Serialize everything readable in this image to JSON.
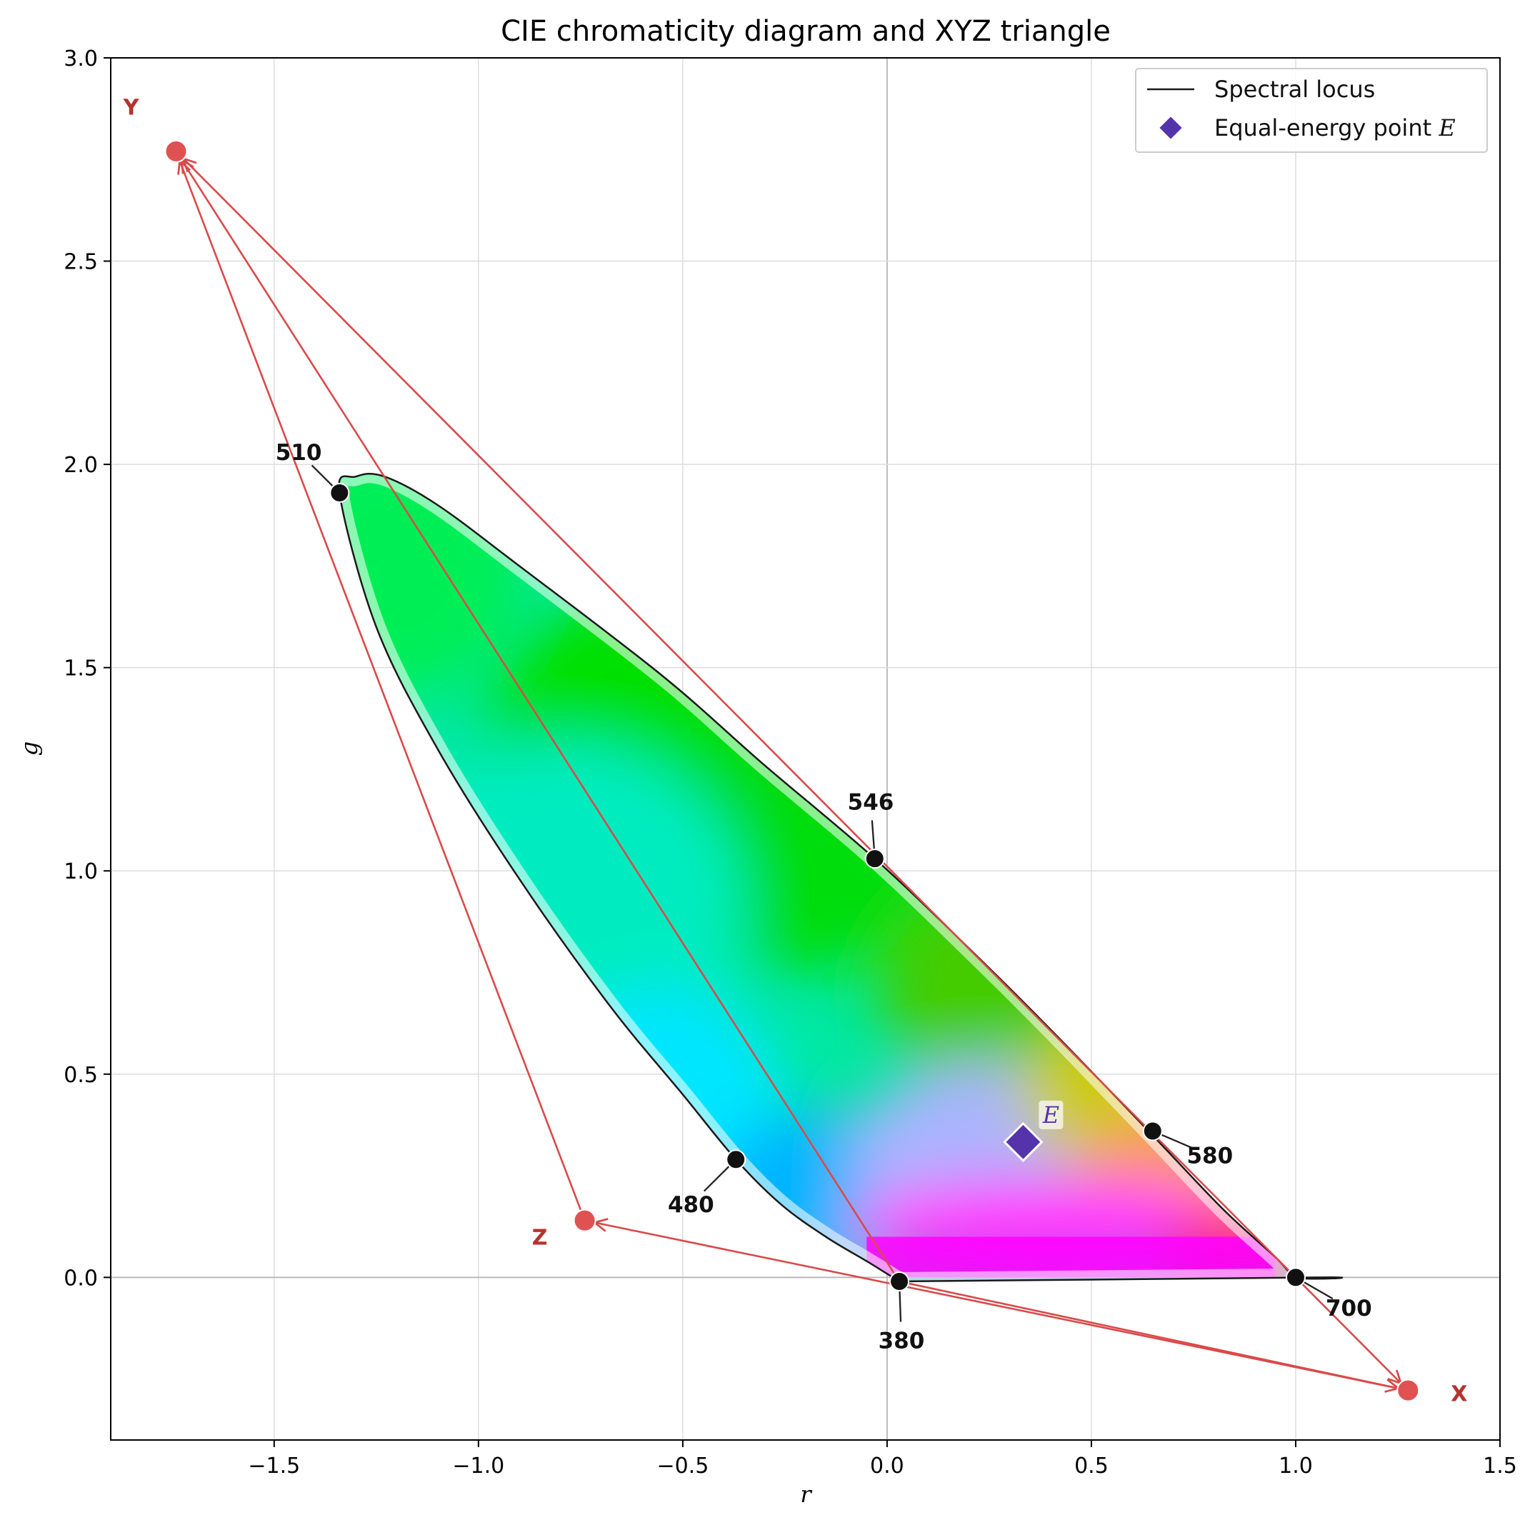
{
  "colors": {
    "triangle": "#d94a4a",
    "vertex_label": "#b5332e",
    "locus": "#1a1a1a",
    "equal_energy": "#5533aa",
    "grid": "#dddddd",
    "zero_axis": "#bbbbbb"
  },
  "chart_data": {
    "type": "scatter",
    "title": "CIE chromaticity diagram and XYZ triangle",
    "xlabel": "r",
    "ylabel": "g",
    "xlim": [
      -1.9,
      1.5
    ],
    "ylim": [
      -0.4,
      3.0
    ],
    "xticks": [
      -1.5,
      -1.0,
      -0.5,
      0.0,
      0.5,
      1.0,
      1.5
    ],
    "xtick_labels": [
      "−1.5",
      "−1.0",
      "−0.5",
      "0.0",
      "0.5",
      "1.0",
      "1.5"
    ],
    "yticks": [
      0.0,
      0.5,
      1.0,
      1.5,
      2.0,
      2.5,
      3.0
    ],
    "ytick_labels": [
      "0.0",
      "0.5",
      "1.0",
      "1.5",
      "2.0",
      "2.5",
      "3.0"
    ],
    "grid": true,
    "legend_position": "top-right",
    "legend": [
      {
        "label": "Spectral locus",
        "marker": "line"
      },
      {
        "label": "Equal-energy point",
        "label_italic": "E",
        "marker": "diamond"
      }
    ],
    "spectral_locus": {
      "name": "Spectral locus",
      "points": [
        [
          0.03,
          -0.01
        ],
        [
          -0.05,
          0.04
        ],
        [
          -0.15,
          0.1
        ],
        [
          -0.26,
          0.18
        ],
        [
          -0.37,
          0.29
        ],
        [
          -0.5,
          0.45
        ],
        [
          -0.68,
          0.67
        ],
        [
          -0.9,
          0.98
        ],
        [
          -1.1,
          1.3
        ],
        [
          -1.25,
          1.6
        ],
        [
          -1.34,
          1.93
        ],
        [
          -1.3,
          1.97
        ],
        [
          -1.23,
          1.97
        ],
        [
          -1.1,
          1.9
        ],
        [
          -0.9,
          1.75
        ],
        [
          -0.55,
          1.48
        ],
        [
          -0.3,
          1.26
        ],
        [
          -0.03,
          1.03
        ],
        [
          0.2,
          0.81
        ],
        [
          0.4,
          0.61
        ],
        [
          0.64,
          0.36
        ],
        [
          0.82,
          0.17
        ],
        [
          0.95,
          0.05
        ],
        [
          1.0,
          0.0
        ],
        [
          1.05,
          0.0
        ],
        [
          0.03,
          -0.01
        ]
      ]
    },
    "wavelength_markers": [
      {
        "label": "510",
        "r": -1.34,
        "g": 1.93,
        "label_r": -1.44,
        "label_g": 2.03
      },
      {
        "label": "546",
        "r": -0.03,
        "g": 1.03,
        "label_r": -0.04,
        "label_g": 1.17
      },
      {
        "label": "480",
        "r": -0.37,
        "g": 0.29,
        "label_r": -0.48,
        "label_g": 0.18
      },
      {
        "label": "580",
        "r": 0.65,
        "g": 0.36,
        "label_r": 0.79,
        "label_g": 0.3
      },
      {
        "label": "700",
        "r": 1.0,
        "g": 0.0,
        "label_r": 1.13,
        "label_g": -0.075
      },
      {
        "label": "380",
        "r": 0.03,
        "g": -0.01,
        "label_r": 0.035,
        "label_g": -0.155
      }
    ],
    "xyz_primaries": [
      {
        "label": "X",
        "r": 1.275,
        "g": -0.278,
        "label_r": 1.4,
        "label_g": -0.285
      },
      {
        "label": "Y",
        "r": -1.74,
        "g": 2.77,
        "label_r": -1.85,
        "label_g": 2.88
      },
      {
        "label": "Z",
        "r": -0.74,
        "g": 0.14,
        "label_r": -0.85,
        "label_g": 0.1
      }
    ],
    "triangle_arrows": [
      {
        "from": [
          1.0,
          0.0
        ],
        "to": [
          1.275,
          -0.278
        ]
      },
      {
        "from": [
          0.03,
          -0.01
        ],
        "to": [
          1.275,
          -0.278
        ]
      },
      {
        "from": [
          0.03,
          -0.01
        ],
        "to": [
          -1.74,
          2.77
        ]
      },
      {
        "from": [
          1.0,
          0.0
        ],
        "to": [
          -1.74,
          2.77
        ]
      },
      {
        "from": [
          1.275,
          -0.278
        ],
        "to": [
          -0.74,
          0.14
        ]
      },
      {
        "from": [
          -0.74,
          0.14
        ],
        "to": [
          -1.74,
          2.77
        ]
      }
    ],
    "equal_energy_point": {
      "r": 0.333,
      "g": 0.333,
      "label": "E"
    }
  }
}
